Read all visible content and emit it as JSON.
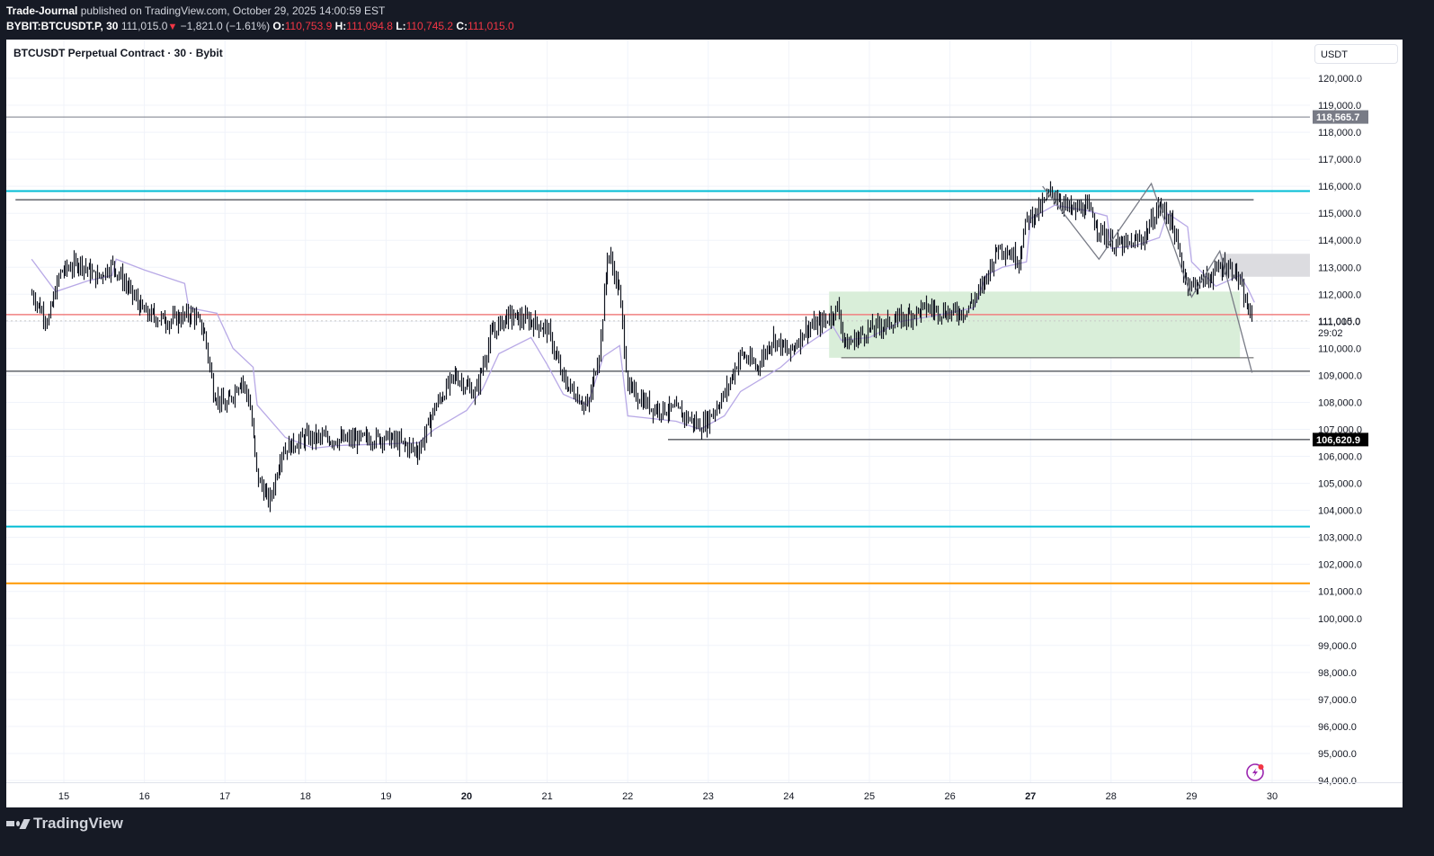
{
  "header": {
    "publisher": "Trade-Journal",
    "published_text": " published on TradingView.com, October 29, 2025 14:00:59 EST",
    "symbol": "BYBIT:BTCUSDT.P, 30",
    "last_price": "111,015.0",
    "change_icon": "triangle-down-icon",
    "change": "−1,821.0 (−1.61%)",
    "o_label": "O:",
    "o_value": "110,753.9",
    "h_label": "H:",
    "h_value": "111,094.8",
    "l_label": "L:",
    "l_value": "110,745.2",
    "c_label": "C:",
    "c_value": "111,015.0"
  },
  "chart": {
    "title": "BTCUSDT Perpetual Contract · 30 · Bybit",
    "currency": "USDT",
    "countdown": "29:02",
    "price_labels": {
      "horizontal_line_top": "118,565.7",
      "horizontal_line_low": "106,620.9",
      "last_price": "111,015.0"
    },
    "alert_icon": "lightning-alert-icon"
  },
  "footer": {
    "brand": "TradingView"
  },
  "colors": {
    "background": "#161a25",
    "bar_color": "#131722",
    "vwap_line": "#b8a9e6",
    "cyan_level": "#00bcd4",
    "orange_level": "#ff9800",
    "red_level": "#f08080",
    "green_zone": "#d9eed9",
    "gray_zone": "#dcdce0",
    "label_gray": "#787b86",
    "label_black": "#000000",
    "alert_purple": "#9c27b0",
    "negative": "#f23645"
  },
  "chart_data": {
    "type": "bar",
    "title": "BTCUSDT Perpetual Contract · 30 · Bybit",
    "xlabel": "",
    "ylabel": "USDT",
    "ylim": [
      94000,
      120500
    ],
    "grid": true,
    "x_ticks": [
      {
        "label": "15",
        "bold": false
      },
      {
        "label": "16",
        "bold": false
      },
      {
        "label": "17",
        "bold": false
      },
      {
        "label": "18",
        "bold": false
      },
      {
        "label": "19",
        "bold": false
      },
      {
        "label": "20",
        "bold": true
      },
      {
        "label": "21",
        "bold": false
      },
      {
        "label": "22",
        "bold": false
      },
      {
        "label": "23",
        "bold": false
      },
      {
        "label": "24",
        "bold": false
      },
      {
        "label": "25",
        "bold": false
      },
      {
        "label": "26",
        "bold": false
      },
      {
        "label": "27",
        "bold": true
      },
      {
        "label": "28",
        "bold": false
      },
      {
        "label": "29",
        "bold": false
      },
      {
        "label": "30",
        "bold": false
      }
    ],
    "y_ticks": [
      "120,000.0",
      "119,000.0",
      "118,000.0",
      "117,000.0",
      "116,000.0",
      "115,000.0",
      "114,000.0",
      "113,000.0",
      "112,000.0",
      "111,000.0",
      "110,000.0",
      "109,000.0",
      "108,000.0",
      "107,000.0",
      "106,000.0",
      "105,000.0",
      "104,000.0",
      "103,000.0",
      "102,000.0",
      "101,000.0",
      "100,000.0",
      "99,000.0",
      "98,000.0",
      "97,000.0",
      "96,000.0",
      "95,000.0",
      "94,000.0"
    ],
    "price_path": [
      {
        "day": 14.6,
        "price": 112000
      },
      {
        "day": 14.8,
        "price": 111000
      },
      {
        "day": 14.95,
        "price": 112800
      },
      {
        "day": 15.2,
        "price": 113200
      },
      {
        "day": 15.4,
        "price": 112600
      },
      {
        "day": 15.6,
        "price": 113100
      },
      {
        "day": 15.8,
        "price": 112200
      },
      {
        "day": 16.0,
        "price": 111300
      },
      {
        "day": 16.3,
        "price": 111000
      },
      {
        "day": 16.6,
        "price": 111300
      },
      {
        "day": 16.75,
        "price": 110500
      },
      {
        "day": 16.85,
        "price": 108400
      },
      {
        "day": 17.0,
        "price": 107800
      },
      {
        "day": 17.2,
        "price": 108900
      },
      {
        "day": 17.3,
        "price": 108000
      },
      {
        "day": 17.4,
        "price": 105200
      },
      {
        "day": 17.55,
        "price": 104300
      },
      {
        "day": 17.7,
        "price": 106200
      },
      {
        "day": 18.0,
        "price": 106700
      },
      {
        "day": 18.5,
        "price": 106600
      },
      {
        "day": 19.0,
        "price": 106700
      },
      {
        "day": 19.4,
        "price": 106200
      },
      {
        "day": 19.6,
        "price": 107800
      },
      {
        "day": 19.85,
        "price": 109000
      },
      {
        "day": 20.1,
        "price": 108300
      },
      {
        "day": 20.3,
        "price": 110500
      },
      {
        "day": 20.5,
        "price": 111200
      },
      {
        "day": 20.8,
        "price": 111000
      },
      {
        "day": 21.0,
        "price": 110700
      },
      {
        "day": 21.2,
        "price": 108800
      },
      {
        "day": 21.5,
        "price": 107800
      },
      {
        "day": 21.65,
        "price": 110000
      },
      {
        "day": 21.75,
        "price": 113600
      },
      {
        "day": 21.9,
        "price": 112000
      },
      {
        "day": 22.0,
        "price": 108500
      },
      {
        "day": 22.3,
        "price": 107800
      },
      {
        "day": 22.6,
        "price": 107700
      },
      {
        "day": 22.9,
        "price": 107100
      },
      {
        "day": 23.0,
        "price": 107400
      },
      {
        "day": 23.2,
        "price": 108300
      },
      {
        "day": 23.4,
        "price": 109800
      },
      {
        "day": 23.6,
        "price": 109300
      },
      {
        "day": 23.8,
        "price": 110400
      },
      {
        "day": 24.0,
        "price": 109800
      },
      {
        "day": 24.2,
        "price": 110700
      },
      {
        "day": 24.45,
        "price": 111000
      },
      {
        "day": 24.6,
        "price": 111500
      },
      {
        "day": 24.7,
        "price": 110100
      },
      {
        "day": 25.0,
        "price": 110700
      },
      {
        "day": 25.4,
        "price": 111100
      },
      {
        "day": 25.7,
        "price": 111500
      },
      {
        "day": 26.0,
        "price": 111300
      },
      {
        "day": 26.2,
        "price": 111400
      },
      {
        "day": 26.4,
        "price": 112300
      },
      {
        "day": 26.6,
        "price": 113800
      },
      {
        "day": 26.85,
        "price": 113300
      },
      {
        "day": 26.95,
        "price": 114800
      },
      {
        "day": 27.1,
        "price": 115100
      },
      {
        "day": 27.25,
        "price": 115800
      },
      {
        "day": 27.5,
        "price": 115100
      },
      {
        "day": 27.7,
        "price": 115200
      },
      {
        "day": 27.85,
        "price": 114400
      },
      {
        "day": 28.0,
        "price": 113900
      },
      {
        "day": 28.2,
        "price": 113800
      },
      {
        "day": 28.4,
        "price": 114100
      },
      {
        "day": 28.6,
        "price": 115300
      },
      {
        "day": 28.75,
        "price": 114700
      },
      {
        "day": 28.9,
        "price": 112700
      },
      {
        "day": 29.0,
        "price": 112300
      },
      {
        "day": 29.2,
        "price": 112600
      },
      {
        "day": 29.4,
        "price": 113100
      },
      {
        "day": 29.55,
        "price": 112800
      },
      {
        "day": 29.65,
        "price": 111800
      },
      {
        "day": 29.75,
        "price": 111015
      }
    ],
    "vwap_path": [
      {
        "day": 14.6,
        "price": 113300
      },
      {
        "day": 14.9,
        "price": 112100
      },
      {
        "day": 15.3,
        "price": 112500
      },
      {
        "day": 15.6,
        "price": 112700
      },
      {
        "day": 15.65,
        "price": 113300
      },
      {
        "day": 16.0,
        "price": 112900
      },
      {
        "day": 16.5,
        "price": 112400
      },
      {
        "day": 16.55,
        "price": 111500
      },
      {
        "day": 16.9,
        "price": 111300
      },
      {
        "day": 17.1,
        "price": 110000
      },
      {
        "day": 17.35,
        "price": 109300
      },
      {
        "day": 17.4,
        "price": 107900
      },
      {
        "day": 17.75,
        "price": 106700
      },
      {
        "day": 18.1,
        "price": 106300
      },
      {
        "day": 18.4,
        "price": 106400
      },
      {
        "day": 19.4,
        "price": 106500
      },
      {
        "day": 19.6,
        "price": 107000
      },
      {
        "day": 20.0,
        "price": 107700
      },
      {
        "day": 20.2,
        "price": 108500
      },
      {
        "day": 20.4,
        "price": 109800
      },
      {
        "day": 20.8,
        "price": 110400
      },
      {
        "day": 21.0,
        "price": 109400
      },
      {
        "day": 21.2,
        "price": 108300
      },
      {
        "day": 21.5,
        "price": 107900
      },
      {
        "day": 21.7,
        "price": 109700
      },
      {
        "day": 21.9,
        "price": 110100
      },
      {
        "day": 22.0,
        "price": 107500
      },
      {
        "day": 22.6,
        "price": 107300
      },
      {
        "day": 22.9,
        "price": 107000
      },
      {
        "day": 23.2,
        "price": 107500
      },
      {
        "day": 23.4,
        "price": 108400
      },
      {
        "day": 23.9,
        "price": 109300
      },
      {
        "day": 24.2,
        "price": 110100
      },
      {
        "day": 24.55,
        "price": 110800
      },
      {
        "day": 24.65,
        "price": 110300
      },
      {
        "day": 25.0,
        "price": 110400
      },
      {
        "day": 25.4,
        "price": 111000
      },
      {
        "day": 25.8,
        "price": 111200
      },
      {
        "day": 26.3,
        "price": 111500
      },
      {
        "day": 26.45,
        "price": 112700
      },
      {
        "day": 26.65,
        "price": 113000
      },
      {
        "day": 26.95,
        "price": 113200
      },
      {
        "day": 27.0,
        "price": 114800
      },
      {
        "day": 27.3,
        "price": 115300
      },
      {
        "day": 27.7,
        "price": 115100
      },
      {
        "day": 27.95,
        "price": 114900
      },
      {
        "day": 28.0,
        "price": 113700
      },
      {
        "day": 28.3,
        "price": 113800
      },
      {
        "day": 28.6,
        "price": 114100
      },
      {
        "day": 28.7,
        "price": 115000
      },
      {
        "day": 28.95,
        "price": 114500
      },
      {
        "day": 29.0,
        "price": 113200
      },
      {
        "day": 29.3,
        "price": 112300
      },
      {
        "day": 29.6,
        "price": 112700
      },
      {
        "day": 29.7,
        "price": 112200
      },
      {
        "day": 29.78,
        "price": 111700
      }
    ],
    "horizontal_levels": [
      {
        "name": "top-gray-level",
        "price": 118565.7,
        "color": "#787b86",
        "width": 1,
        "label": "118,565.7"
      },
      {
        "name": "cyan-upper-level",
        "price": 115820,
        "color": "#00bcd4",
        "width": 2
      },
      {
        "name": "black-upper-level",
        "price": 115500,
        "color": "#131722",
        "width": 1,
        "from_day": 14.4,
        "to_day": 29.77
      },
      {
        "name": "red-level",
        "price": 111250,
        "color": "#f08080",
        "width": 1.5
      },
      {
        "name": "black-mid-level",
        "price": 109150,
        "color": "#131722",
        "width": 1
      },
      {
        "name": "black-low-level",
        "price": 106620.9,
        "color": "#131722",
        "width": 1,
        "from_day": 22.5,
        "label": "106,620.9"
      },
      {
        "name": "cyan-lower-level",
        "price": 103400,
        "color": "#00bcd4",
        "width": 2
      },
      {
        "name": "orange-level",
        "price": 101300,
        "color": "#ff9800",
        "width": 2
      }
    ],
    "zones": [
      {
        "name": "green-demand-zone",
        "from_day": 24.5,
        "to_day": 29.6,
        "top": 112100,
        "bottom": 109650,
        "color": "#d9eed9"
      },
      {
        "name": "gray-supply-zone",
        "from_day": 29.35,
        "to_day": 30.5,
        "top": 113500,
        "bottom": 112650,
        "color": "#dcdce0"
      }
    ],
    "zigzag": [
      {
        "day": 27.15,
        "price": 116000
      },
      {
        "day": 27.85,
        "price": 113300
      },
      {
        "day": 28.5,
        "price": 116100
      },
      {
        "day": 29.0,
        "price": 111900
      },
      {
        "day": 29.35,
        "price": 113600
      },
      {
        "day": 29.75,
        "price": 109100
      }
    ],
    "annotations": [
      "118,565.7",
      "106,620.9",
      "111,015.0",
      "29:02"
    ]
  }
}
